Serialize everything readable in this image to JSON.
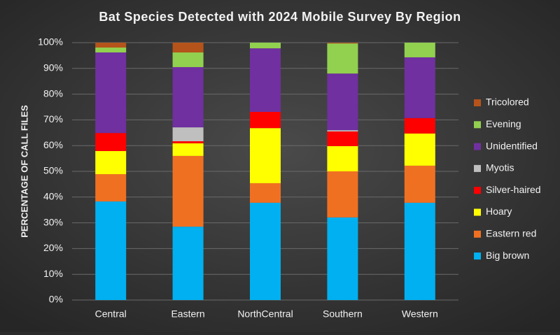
{
  "chart_data": {
    "type": "stacked_bar",
    "title": "Bat Species Detected with 2024 Mobile Survey By Region",
    "y_label": "PERCENTAGE OF CALL FILES",
    "categories": [
      "Central",
      "Eastern",
      "NorthCentral",
      "Southern",
      "Western"
    ],
    "series": [
      {
        "name": "Big brown",
        "color": "#00b0f0",
        "values": [
          38.3,
          28.5,
          37.8,
          32.1,
          37.8
        ]
      },
      {
        "name": "Eastern red",
        "color": "#f07022",
        "values": [
          10.6,
          27.5,
          7.6,
          17.9,
          14.4
        ]
      },
      {
        "name": "Hoary",
        "color": "#ffff00",
        "values": [
          9.0,
          4.9,
          21.4,
          9.8,
          12.5
        ]
      },
      {
        "name": "Silver-haired",
        "color": "#ff0000",
        "values": [
          7.0,
          0.8,
          6.3,
          5.7,
          6.0
        ]
      },
      {
        "name": "Myotis",
        "color": "#bfbfbf",
        "values": [
          0,
          5.4,
          0,
          0.5,
          0
        ]
      },
      {
        "name": "Unidentified",
        "color": "#7030a0",
        "values": [
          31.3,
          23.4,
          24.7,
          22.0,
          23.6
        ]
      },
      {
        "name": "Evening",
        "color": "#92d050",
        "values": [
          1.9,
          5.7,
          2.2,
          11.7,
          5.7
        ]
      },
      {
        "name": "Tricolored",
        "color": "#b5541a",
        "values": [
          1.9,
          3.8,
          0,
          0.3,
          0
        ]
      }
    ],
    "ylim": [
      0,
      100
    ],
    "yticks": [
      {
        "value": 0,
        "label": "0%"
      },
      {
        "value": 10,
        "label": "10%"
      },
      {
        "value": 20,
        "label": "20%"
      },
      {
        "value": 30,
        "label": "30%"
      },
      {
        "value": 40,
        "label": "40%"
      },
      {
        "value": 50,
        "label": "50%"
      },
      {
        "value": 60,
        "label": "60%"
      },
      {
        "value": 70,
        "label": "70%"
      },
      {
        "value": 80,
        "label": "80%"
      },
      {
        "value": 90,
        "label": "90%"
      },
      {
        "value": 100,
        "label": "100%"
      }
    ],
    "grid": true,
    "legend_position": "right"
  }
}
